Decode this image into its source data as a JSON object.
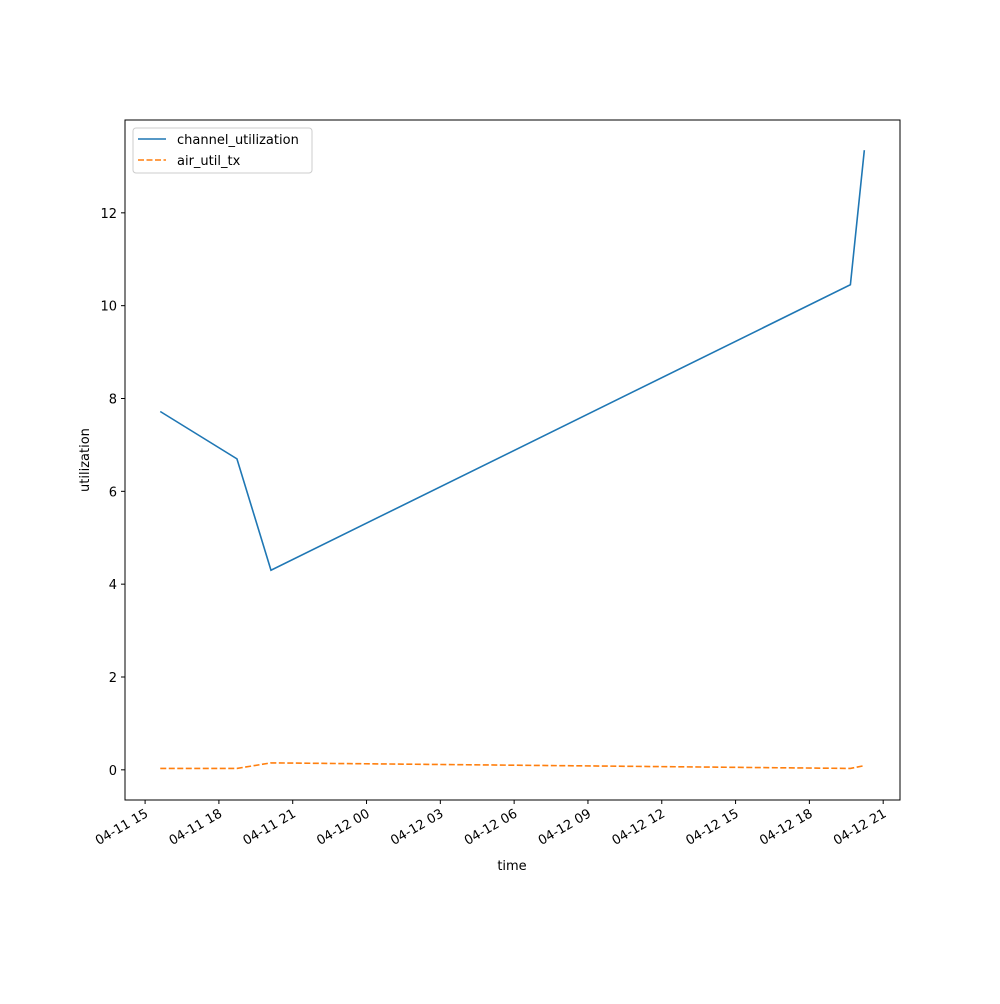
{
  "chart_data": {
    "type": "line",
    "x": [
      "04-11 15:37",
      "04-11 18:44",
      "04-11 20:07",
      "04-12 19:40",
      "04-12 20:14"
    ],
    "series": [
      {
        "name": "channel_utilization",
        "color": "#1f77b4",
        "dash": false,
        "values": [
          7.72,
          6.7,
          4.3,
          10.45,
          13.35
        ]
      },
      {
        "name": "air_util_tx",
        "color": "#ff7f0e",
        "dash": true,
        "values": [
          0.03,
          0.03,
          0.15,
          0.03,
          0.09
        ]
      }
    ],
    "xlabel": "time",
    "ylabel": "utilization",
    "xlim": [
      "04-11 14:11",
      "04-12 21:41"
    ],
    "xticks": [
      {
        "value": "04-11 15:00",
        "label": "04-11 15"
      },
      {
        "value": "04-11 18:00",
        "label": "04-11 18"
      },
      {
        "value": "04-11 21:00",
        "label": "04-11 21"
      },
      {
        "value": "04-12 00:00",
        "label": "04-12 00"
      },
      {
        "value": "04-12 03:00",
        "label": "04-12 03"
      },
      {
        "value": "04-12 06:00",
        "label": "04-12 06"
      },
      {
        "value": "04-12 09:00",
        "label": "04-12 09"
      },
      {
        "value": "04-12 12:00",
        "label": "04-12 12"
      },
      {
        "value": "04-12 15:00",
        "label": "04-12 15"
      },
      {
        "value": "04-12 18:00",
        "label": "04-12 18"
      },
      {
        "value": "04-12 21:00",
        "label": "04-12 21"
      }
    ],
    "ylim": [
      -0.65,
      14.0
    ],
    "yticks": [
      0,
      2,
      4,
      6,
      8,
      10,
      12
    ],
    "grid": false,
    "legend": "upper left"
  }
}
